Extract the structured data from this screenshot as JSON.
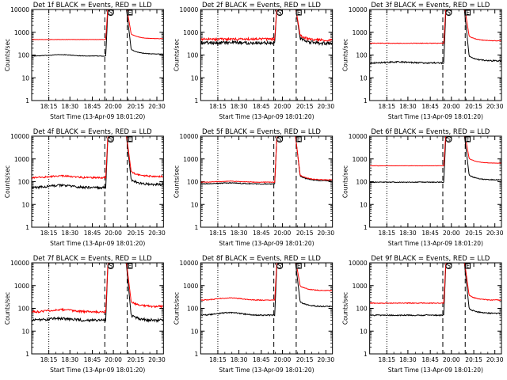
{
  "common": {
    "x_tick_labels": [
      "18:15",
      "18:30",
      "18:45",
      "20:00",
      "20:15",
      "20:30"
    ],
    "y_tick_labels": [
      "1",
      "10",
      "100",
      "1000",
      "10000"
    ],
    "ylabel": "Counts/sec",
    "xlabel": "Start Time (13-Apr-09 18:01:20)",
    "marker_labels": [
      "S",
      "E"
    ]
  },
  "colors": {
    "events": "#000000",
    "lld": "#ff0000"
  },
  "chart_data": [
    {
      "type": "line",
      "title": "Det 1f BLACK = Events, RED = LLD",
      "ylim": [
        1,
        10000
      ],
      "yscale": "log",
      "series": [
        {
          "name": "BLACK = Events",
          "color": "black",
          "pre": 90,
          "post": 110,
          "noise": 0.02,
          "bump": 1.15
        },
        {
          "name": "RED = LLD",
          "color": "red",
          "pre": 480,
          "post": 520,
          "noise": 0.015,
          "bump": 1.0
        }
      ]
    },
    {
      "type": "line",
      "title": "Det 2f BLACK = Events, RED = LLD",
      "ylim": [
        1,
        10000
      ],
      "yscale": "log",
      "series": [
        {
          "name": "BLACK = Events",
          "color": "black",
          "pre": 350,
          "post": 330,
          "noise": 0.12,
          "bump": 1.0
        },
        {
          "name": "RED = LLD",
          "color": "red",
          "pre": 500,
          "post": 450,
          "noise": 0.12,
          "bump": 1.0
        }
      ]
    },
    {
      "type": "line",
      "title": "Det 3f BLACK = Events, RED = LLD",
      "ylim": [
        1,
        10000
      ],
      "yscale": "log",
      "series": [
        {
          "name": "BLACK = Events",
          "color": "black",
          "pre": 45,
          "post": 55,
          "noise": 0.05,
          "bump": 1.1
        },
        {
          "name": "RED = LLD",
          "color": "red",
          "pre": 330,
          "post": 420,
          "noise": 0.03,
          "bump": 1.0
        }
      ]
    },
    {
      "type": "line",
      "title": "Det 4f BLACK = Events, RED = LLD",
      "ylim": [
        1,
        10000
      ],
      "yscale": "log",
      "series": [
        {
          "name": "BLACK = Events",
          "color": "black",
          "pre": 55,
          "post": 75,
          "noise": 0.08,
          "bump": 1.25
        },
        {
          "name": "RED = LLD",
          "color": "red",
          "pre": 150,
          "post": 170,
          "noise": 0.08,
          "bump": 1.2
        }
      ]
    },
    {
      "type": "line",
      "title": "Det 5f BLACK = Events, RED = LLD",
      "ylim": [
        1,
        10000
      ],
      "yscale": "log",
      "series": [
        {
          "name": "BLACK = Events",
          "color": "black",
          "pre": 80,
          "post": 110,
          "noise": 0.03,
          "bump": 1.1
        },
        {
          "name": "RED = LLD",
          "color": "red",
          "pre": 95,
          "post": 120,
          "noise": 0.03,
          "bump": 1.1
        }
      ]
    },
    {
      "type": "line",
      "title": "Det 6f BLACK = Events, RED = LLD",
      "ylim": [
        1,
        10000
      ],
      "yscale": "log",
      "series": [
        {
          "name": "BLACK = Events",
          "color": "black",
          "pre": 95,
          "post": 120,
          "noise": 0.03,
          "bump": 1.0
        },
        {
          "name": "RED = LLD",
          "color": "red",
          "pre": 500,
          "post": 650,
          "noise": 0.015,
          "bump": 1.0
        }
      ]
    },
    {
      "type": "line",
      "title": "Det 7f BLACK = Events, RED = LLD",
      "ylim": [
        1,
        10000
      ],
      "yscale": "log",
      "series": [
        {
          "name": "BLACK = Events",
          "color": "black",
          "pre": 30,
          "post": 30,
          "noise": 0.1,
          "bump": 1.2
        },
        {
          "name": "RED = LLD",
          "color": "red",
          "pre": 70,
          "post": 120,
          "noise": 0.1,
          "bump": 1.25
        }
      ]
    },
    {
      "type": "line",
      "title": "Det 8f BLACK = Events, RED = LLD",
      "ylim": [
        1,
        10000
      ],
      "yscale": "log",
      "series": [
        {
          "name": "BLACK = Events",
          "color": "black",
          "pre": 50,
          "post": 120,
          "noise": 0.04,
          "bump": 1.3
        },
        {
          "name": "RED = LLD",
          "color": "red",
          "pre": 230,
          "post": 600,
          "noise": 0.04,
          "bump": 1.25
        }
      ]
    },
    {
      "type": "line",
      "title": "Det 9f BLACK = Events, RED = LLD",
      "ylim": [
        1,
        10000
      ],
      "yscale": "log",
      "series": [
        {
          "name": "BLACK = Events",
          "color": "black",
          "pre": 50,
          "post": 60,
          "noise": 0.04,
          "bump": 1.0
        },
        {
          "name": "RED = LLD",
          "color": "red",
          "pre": 170,
          "post": 230,
          "noise": 0.04,
          "bump": 1.0
        }
      ]
    }
  ]
}
